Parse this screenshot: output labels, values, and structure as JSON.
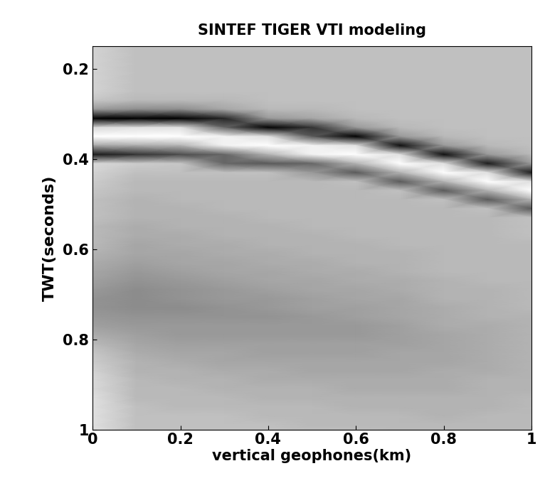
{
  "chart_data": {
    "type": "heatmap",
    "title": "SINTEF TIGER VTI modeling",
    "x_label": "vertical geophones(km)",
    "y_label": "TWT(seconds)",
    "color": "gray",
    "xlim": [
      0,
      1
    ],
    "xticks": [
      0,
      0.2,
      0.4,
      0.6,
      0.8,
      1
    ],
    "ylim": [
      1,
      0.15
    ],
    "yticks": [
      0.2,
      0.4,
      0.6,
      0.8,
      1
    ],
    "x": [
      0,
      0.1,
      0.2,
      0.3,
      0.4,
      0.5,
      0.6,
      0.7,
      0.8,
      0.9,
      1.0
    ],
    "y": [
      0.15,
      0.17,
      0.19,
      0.21,
      0.23,
      0.25,
      0.27,
      0.29,
      0.31,
      0.33,
      0.35,
      0.37,
      0.39,
      0.41,
      0.43,
      0.45,
      0.47,
      0.49,
      0.51,
      0.53,
      0.55,
      0.57,
      0.59,
      0.61,
      0.63,
      0.65,
      0.67,
      0.69,
      0.71,
      0.73,
      0.75,
      0.77,
      0.79,
      0.81,
      0.83,
      0.85,
      0.87,
      0.89,
      0.91,
      0.93,
      0.95,
      0.97,
      0.99,
      1.01
    ],
    "cells": [
      [
        0.65,
        0.65,
        0.65,
        0.65,
        0.65,
        0.65,
        0.55,
        0.2,
        -1,
        0.7,
        1,
        0.3,
        -0.8,
        0.7,
        0.65,
        0.6,
        0.55,
        0.5,
        0.5,
        0.5,
        0.45,
        0.45,
        0.45,
        0.4,
        0.35,
        0.3,
        0.25,
        0.2,
        0.15,
        0.15,
        0.2,
        0.25,
        0.35,
        0.45,
        0.55,
        0.6,
        0.65,
        0.7,
        0.7,
        0.75,
        0.75,
        0.75,
        0.75,
        0.75
      ],
      [
        0.5,
        0.5,
        0.5,
        0.5,
        0.5,
        0.5,
        0.45,
        0.1,
        -1,
        0.75,
        1,
        0.35,
        -0.6,
        0.6,
        0.5,
        0.45,
        0.45,
        0.4,
        0.4,
        0.4,
        0.35,
        0.35,
        0.3,
        0.3,
        0.25,
        0.2,
        0.15,
        0.1,
        0.1,
        0.1,
        0.15,
        0.2,
        0.25,
        0.3,
        0.35,
        0.4,
        0.4,
        0.45,
        0.45,
        0.45,
        0.5,
        0.5,
        0.5,
        0.5
      ],
      [
        0.5,
        0.5,
        0.5,
        0.5,
        0.5,
        0.5,
        0.45,
        0.1,
        -1,
        0.75,
        1,
        0.4,
        -0.4,
        0.55,
        0.5,
        0.45,
        0.45,
        0.45,
        0.4,
        0.4,
        0.4,
        0.35,
        0.35,
        0.3,
        0.3,
        0.25,
        0.2,
        0.15,
        0.15,
        0.1,
        0.15,
        0.2,
        0.2,
        0.25,
        0.3,
        0.35,
        0.4,
        0.4,
        0.45,
        0.45,
        0.45,
        0.5,
        0.5,
        0.5
      ],
      [
        0.5,
        0.5,
        0.5,
        0.5,
        0.5,
        0.5,
        0.45,
        0.3,
        -0.7,
        -0.2,
        0.9,
        0.9,
        -0.2,
        -0.2,
        0.5,
        0.45,
        0.45,
        0.45,
        0.45,
        0.4,
        0.4,
        0.4,
        0.35,
        0.35,
        0.3,
        0.3,
        0.25,
        0.2,
        0.2,
        0.15,
        0.15,
        0.2,
        0.2,
        0.25,
        0.3,
        0.3,
        0.35,
        0.4,
        0.4,
        0.45,
        0.45,
        0.5,
        0.5,
        0.5
      ],
      [
        0.5,
        0.5,
        0.5,
        0.5,
        0.5,
        0.5,
        0.5,
        0.45,
        0.2,
        -1,
        0.75,
        1,
        0.4,
        -0.3,
        0.5,
        0.45,
        0.45,
        0.45,
        0.45,
        0.45,
        0.4,
        0.4,
        0.4,
        0.35,
        0.35,
        0.3,
        0.3,
        0.25,
        0.2,
        0.2,
        0.15,
        0.2,
        0.2,
        0.25,
        0.25,
        0.3,
        0.35,
        0.35,
        0.4,
        0.4,
        0.45,
        0.45,
        0.5,
        0.5
      ],
      [
        0.5,
        0.5,
        0.5,
        0.5,
        0.5,
        0.5,
        0.5,
        0.45,
        0.3,
        -0.6,
        -0.3,
        0.9,
        0.9,
        -0.2,
        0.2,
        0.45,
        0.45,
        0.45,
        0.45,
        0.45,
        0.45,
        0.4,
        0.4,
        0.4,
        0.35,
        0.35,
        0.3,
        0.3,
        0.25,
        0.25,
        0.2,
        0.2,
        0.2,
        0.25,
        0.25,
        0.3,
        0.3,
        0.35,
        0.4,
        0.4,
        0.45,
        0.45,
        0.45,
        0.5
      ],
      [
        0.5,
        0.5,
        0.5,
        0.5,
        0.5,
        0.5,
        0.5,
        0.5,
        0.45,
        0.2,
        -1,
        0.75,
        1,
        0.4,
        -0.3,
        0.5,
        0.45,
        0.45,
        0.45,
        0.45,
        0.45,
        0.45,
        0.4,
        0.4,
        0.4,
        0.35,
        0.35,
        0.3,
        0.3,
        0.25,
        0.25,
        0.2,
        0.2,
        0.25,
        0.25,
        0.3,
        0.3,
        0.35,
        0.35,
        0.4,
        0.4,
        0.45,
        0.45,
        0.5
      ],
      [
        0.5,
        0.5,
        0.5,
        0.5,
        0.5,
        0.5,
        0.5,
        0.5,
        0.5,
        0.45,
        0.2,
        -0.9,
        0.75,
        1,
        0.4,
        -0.3,
        0.5,
        0.45,
        0.45,
        0.45,
        0.45,
        0.45,
        0.45,
        0.4,
        0.4,
        0.4,
        0.35,
        0.35,
        0.3,
        0.3,
        0.3,
        0.25,
        0.25,
        0.25,
        0.3,
        0.3,
        0.3,
        0.35,
        0.35,
        0.4,
        0.4,
        0.45,
        0.45,
        0.45
      ],
      [
        0.5,
        0.5,
        0.5,
        0.5,
        0.5,
        0.5,
        0.5,
        0.5,
        0.5,
        0.5,
        0.45,
        0.2,
        -0.9,
        0.75,
        1,
        0.4,
        -0.3,
        0.5,
        0.45,
        0.45,
        0.45,
        0.45,
        0.45,
        0.45,
        0.45,
        0.45,
        0.4,
        0.4,
        0.4,
        0.35,
        0.35,
        0.35,
        0.3,
        0.3,
        0.3,
        0.3,
        0.35,
        0.35,
        0.35,
        0.4,
        0.4,
        0.4,
        0.45,
        0.45
      ],
      [
        0.5,
        0.5,
        0.5,
        0.5,
        0.5,
        0.5,
        0.5,
        0.5,
        0.5,
        0.5,
        0.5,
        0.45,
        0.2,
        -0.8,
        0.75,
        1,
        0.4,
        -0.3,
        0.5,
        0.45,
        0.45,
        0.45,
        0.45,
        0.45,
        0.45,
        0.45,
        0.45,
        0.4,
        0.4,
        0.4,
        0.4,
        0.35,
        0.35,
        0.35,
        0.35,
        0.35,
        0.35,
        0.4,
        0.4,
        0.4,
        0.4,
        0.45,
        0.45,
        0.45
      ],
      [
        0.5,
        0.5,
        0.5,
        0.5,
        0.5,
        0.5,
        0.5,
        0.5,
        0.5,
        0.5,
        0.5,
        0.5,
        0.45,
        0.2,
        -0.8,
        0.75,
        1,
        0.4,
        -0.3,
        0.5,
        0.5,
        0.5,
        0.45,
        0.45,
        0.45,
        0.45,
        0.45,
        0.45,
        0.45,
        0.45,
        0.4,
        0.4,
        0.4,
        0.4,
        0.4,
        0.4,
        0.4,
        0.4,
        0.4,
        0.45,
        0.45,
        0.45,
        0.45,
        0.45
      ]
    ]
  }
}
